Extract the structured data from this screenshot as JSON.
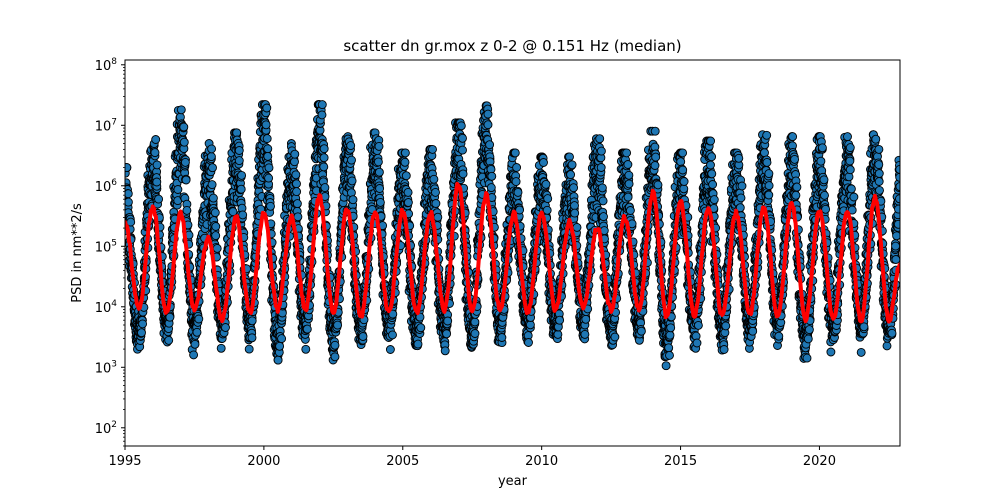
{
  "chart_data": {
    "type": "scatter",
    "title": "scatter dn gr.mox z 0-2 @ 0.151 Hz (median)",
    "xlabel": "year",
    "ylabel": "PSD in nm**2/s",
    "xlim": [
      1995,
      2022.9
    ],
    "ylim": [
      50,
      120000000
    ],
    "yscale": "log",
    "xticks": [
      1995,
      2000,
      2005,
      2010,
      2015,
      2020
    ],
    "xtick_labels": [
      "1995",
      "2000",
      "2005",
      "2010",
      "2015",
      "2020"
    ],
    "yticks": [
      100,
      1000,
      10000,
      100000,
      1000000,
      10000000,
      100000000
    ],
    "ytick_labels": [
      {
        "base": "10",
        "exp": "2"
      },
      {
        "base": "10",
        "exp": "3"
      },
      {
        "base": "10",
        "exp": "4"
      },
      {
        "base": "10",
        "exp": "5"
      },
      {
        "base": "10",
        "exp": "6"
      },
      {
        "base": "10",
        "exp": "7"
      },
      {
        "base": "10",
        "exp": "8"
      }
    ],
    "grid": false,
    "legend": "none",
    "series": [
      {
        "kind": "scatter",
        "color": "#1f77b4",
        "edgecolor": "#000000",
        "annual_cycle": {
          "winter_max_peak_by_year": [
            [
              1995.0,
              2000000
            ],
            [
              1996.0,
              7000000
            ],
            [
              1997.0,
              18000000
            ],
            [
              1998.0,
              5000000
            ],
            [
              1999.0,
              7500000
            ],
            [
              2000.0,
              22000000
            ],
            [
              2001.0,
              5000000
            ],
            [
              2002.0,
              22000000
            ],
            [
              2003.0,
              6500000
            ],
            [
              2004.0,
              7500000
            ],
            [
              2005.0,
              3500000
            ],
            [
              2006.0,
              4000000
            ],
            [
              2007.0,
              11000000
            ],
            [
              2008.0,
              21000000
            ],
            [
              2009.0,
              3500000
            ],
            [
              2010.0,
              3000000
            ],
            [
              2011.0,
              3000000
            ],
            [
              2012.0,
              6000000
            ],
            [
              2013.0,
              3500000
            ],
            [
              2014.0,
              8000000
            ],
            [
              2015.0,
              3500000
            ],
            [
              2016.0,
              5500000
            ],
            [
              2017.0,
              3500000
            ],
            [
              2018.0,
              7000000
            ],
            [
              2019.0,
              6500000
            ],
            [
              2020.0,
              6500000
            ],
            [
              2021.0,
              6500000
            ],
            [
              2022.0,
              7000000
            ]
          ],
          "summer_min_low_by_year": [
            [
              1995.5,
              1100
            ],
            [
              1996.5,
              1800
            ],
            [
              1997.5,
              1600
            ],
            [
              1998.5,
              1800
            ],
            [
              1999.5,
              2000
            ],
            [
              2000.5,
              950
            ],
            [
              2001.5,
              1800
            ],
            [
              2002.5,
              950
            ],
            [
              2003.5,
              1600
            ],
            [
              2004.5,
              1700
            ],
            [
              2005.5,
              1600
            ],
            [
              2006.5,
              1700
            ],
            [
              2007.5,
              1100
            ],
            [
              2008.5,
              1700
            ],
            [
              2009.5,
              2000
            ],
            [
              2010.5,
              1700
            ],
            [
              2011.5,
              2100
            ],
            [
              2012.5,
              1700
            ],
            [
              2013.5,
              1900
            ],
            [
              2014.5,
              950
            ],
            [
              2015.5,
              1600
            ],
            [
              2016.5,
              1500
            ],
            [
              2017.5,
              1600
            ],
            [
              2018.5,
              1800
            ],
            [
              2019.5,
              950
            ],
            [
              2020.5,
              1500
            ],
            [
              2021.5,
              1500
            ],
            [
              2022.5,
              1600
            ]
          ]
        }
      },
      {
        "kind": "line",
        "color": "#ff0000",
        "linewidth": 4,
        "description_values": "running median",
        "peaks": [
          [
            1995.0,
            250000
          ],
          [
            1996.0,
            450000
          ],
          [
            1997.0,
            350000
          ],
          [
            1998.0,
            140000
          ],
          [
            1999.0,
            300000
          ],
          [
            2000.0,
            350000
          ],
          [
            2001.0,
            300000
          ],
          [
            2002.0,
            650000
          ],
          [
            2003.0,
            400000
          ],
          [
            2004.0,
            350000
          ],
          [
            2005.0,
            400000
          ],
          [
            2006.0,
            350000
          ],
          [
            2007.0,
            1050000
          ],
          [
            2008.0,
            700000
          ],
          [
            2009.0,
            350000
          ],
          [
            2010.0,
            350000
          ],
          [
            2011.0,
            250000
          ],
          [
            2012.0,
            200000
          ],
          [
            2013.0,
            300000
          ],
          [
            2014.0,
            750000
          ],
          [
            2015.0,
            550000
          ],
          [
            2016.0,
            450000
          ],
          [
            2017.0,
            350000
          ],
          [
            2018.0,
            450000
          ],
          [
            2019.0,
            500000
          ],
          [
            2020.0,
            400000
          ],
          [
            2021.0,
            400000
          ],
          [
            2022.0,
            650000
          ]
        ],
        "troughs": [
          [
            1995.5,
            9000
          ],
          [
            1996.5,
            8000
          ],
          [
            1997.5,
            9000
          ],
          [
            1998.5,
            6000
          ],
          [
            1999.5,
            8000
          ],
          [
            2000.5,
            9000
          ],
          [
            2001.5,
            9000
          ],
          [
            2002.5,
            8000
          ],
          [
            2003.5,
            7000
          ],
          [
            2004.5,
            8000
          ],
          [
            2005.5,
            8000
          ],
          [
            2006.5,
            9000
          ],
          [
            2007.5,
            8000
          ],
          [
            2008.5,
            9000
          ],
          [
            2009.5,
            8000
          ],
          [
            2010.5,
            9000
          ],
          [
            2011.5,
            10000
          ],
          [
            2012.5,
            9000
          ],
          [
            2013.5,
            9000
          ],
          [
            2014.5,
            7000
          ],
          [
            2015.5,
            7000
          ],
          [
            2016.5,
            7000
          ],
          [
            2017.5,
            8000
          ],
          [
            2018.5,
            7000
          ],
          [
            2019.5,
            6000
          ],
          [
            2020.5,
            6000
          ],
          [
            2021.5,
            6000
          ],
          [
            2022.5,
            6000
          ]
        ],
        "end": [
          2022.9,
          50000
        ]
      }
    ]
  }
}
